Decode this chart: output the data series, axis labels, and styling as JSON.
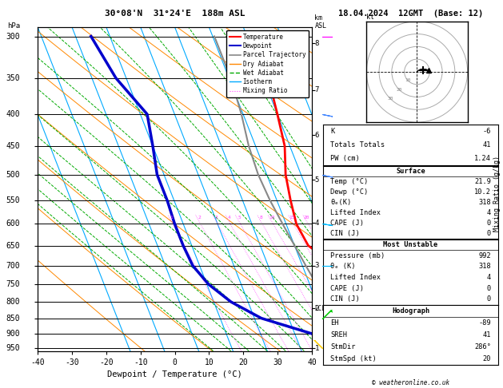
{
  "title_left": "30°08'N  31°24'E  188m ASL",
  "title_date": "18.04.2024  12GMT  (Base: 12)",
  "xlabel": "Dewpoint / Temperature (°C)",
  "ylabel_left": "hPa",
  "pressure_levels": [
    300,
    350,
    400,
    450,
    500,
    550,
    600,
    650,
    700,
    750,
    800,
    850,
    900,
    950
  ],
  "pressure_labels": [
    "300",
    "350",
    "400",
    "450",
    "500",
    "550",
    "600",
    "650",
    "700",
    "750",
    "800",
    "850",
    "900",
    "950"
  ],
  "temp_x": [
    22.0,
    21.5,
    20.0,
    18.5,
    15.5,
    14.0,
    13.0,
    14.0,
    19.5,
    21.0,
    21.5,
    21.8,
    21.6,
    21.9
  ],
  "temp_p": [
    300,
    350,
    400,
    450,
    500,
    550,
    600,
    650,
    700,
    750,
    800,
    850,
    900,
    950
  ],
  "dewp_x": [
    -25.5,
    -23.0,
    -18.0,
    -20.0,
    -22.0,
    -22.0,
    -22.5,
    -22.5,
    -22.0,
    -19.5,
    -15.0,
    -8.0,
    5.0,
    10.2
  ],
  "dewp_p": [
    300,
    350,
    400,
    450,
    500,
    550,
    600,
    650,
    700,
    750,
    800,
    850,
    900,
    950
  ],
  "parcel_x": [
    10.5,
    10.5,
    9.5,
    8.0,
    7.5,
    8.0,
    9.0,
    10.0,
    11.0,
    12.0,
    14.0,
    17.0,
    19.5,
    21.9
  ],
  "parcel_p": [
    300,
    350,
    400,
    450,
    500,
    550,
    600,
    650,
    700,
    750,
    800,
    850,
    900,
    950
  ],
  "xlim": [
    -40,
    40
  ],
  "ylim_p": [
    960,
    290
  ],
  "skew_factor": 37.0,
  "km_pressures": [
    950,
    820,
    700,
    598,
    510,
    432,
    366,
    308
  ],
  "km_labels": [
    "1",
    "2",
    "3",
    "4",
    "5",
    "6",
    "7",
    "8"
  ],
  "mixing_ratio_values": [
    1,
    2,
    3,
    4,
    5,
    8,
    10,
    15,
    20,
    25
  ],
  "lcl_pressure": 820,
  "color_temp": "#ff0000",
  "color_dewp": "#0000cc",
  "color_parcel": "#888888",
  "color_dry_adiabat": "#ff8800",
  "color_wet_adiabat": "#00aa00",
  "color_isotherm": "#00aaff",
  "color_mixing": "#ff44ff",
  "color_bg": "#ffffff",
  "k_index": -6,
  "totals_totals": 41,
  "pw_cm": "1.24",
  "surf_temp": "21.9",
  "surf_dewp": "10.2",
  "surf_theta_e": "318",
  "surf_lifted_index": "4",
  "surf_cape": "0",
  "surf_cin": "0",
  "mu_pressure": "992",
  "mu_theta_e": "318",
  "mu_lifted_index": "4",
  "mu_cape": "0",
  "mu_cin": "0",
  "hodo_eh": "-89",
  "hodo_sreh": "41",
  "hodo_stmdir": "286°",
  "hodo_stmspd": "20",
  "credit": "© weatheronline.co.uk",
  "wind_barbs": [
    {
      "p": 300,
      "u": -25,
      "v": 0,
      "color": "#ff00ff"
    },
    {
      "p": 400,
      "u": -15,
      "v": 3,
      "color": "#4488ff"
    },
    {
      "p": 500,
      "u": -10,
      "v": 2,
      "color": "#4488ff"
    },
    {
      "p": 600,
      "u": -6,
      "v": 1,
      "color": "#00bbff"
    },
    {
      "p": 700,
      "u": -4,
      "v": 0,
      "color": "#00bbff"
    },
    {
      "p": 850,
      "u": -2,
      "v": -2,
      "color": "#00cc00"
    },
    {
      "p": 950,
      "u": 3,
      "v": -3,
      "color": "#ffcc00"
    }
  ]
}
